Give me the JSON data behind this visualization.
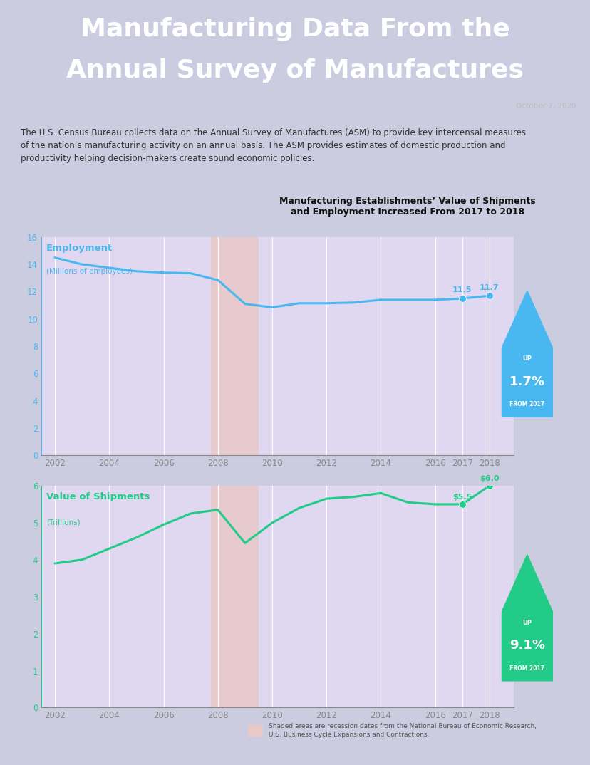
{
  "title_line1": "Manufacturing Data From the",
  "title_line2": "Annual Survey of Manufactures",
  "date_text": "October 2, 2020",
  "header_bg_color": "#595959",
  "body_bg_color": "#cccce0",
  "chart_bg_color": "#e0d8f0",
  "description_line1": "The U.S. Census Bureau collects data on the Annual Survey of Manufactures (ASM) to provide key intercensal measures",
  "description_line2": "of the nation’s manufacturing activity on an annual basis. The ASM provides estimates of domestic production and",
  "description_line3": "productivity helping decision-makers create sound economic policies.",
  "chart_subtitle": "Manufacturing Establishments’ Value of Shipments\nand Employment Increased From 2017 to 2018",
  "recession_shade": [
    2007.75,
    2009.5
  ],
  "employment_years": [
    2002,
    2003,
    2004,
    2005,
    2006,
    2007,
    2008,
    2009,
    2010,
    2011,
    2012,
    2013,
    2014,
    2015,
    2016,
    2017,
    2018
  ],
  "employment_values": [
    14.5,
    14.0,
    13.75,
    13.5,
    13.4,
    13.35,
    12.85,
    11.1,
    10.85,
    11.15,
    11.15,
    11.2,
    11.4,
    11.4,
    11.4,
    11.5,
    11.7
  ],
  "shipments_years": [
    2002,
    2003,
    2004,
    2005,
    2006,
    2007,
    2008,
    2009,
    2010,
    2011,
    2012,
    2013,
    2014,
    2015,
    2016,
    2017,
    2018
  ],
  "shipments_values": [
    3.9,
    4.0,
    4.3,
    4.6,
    4.95,
    5.25,
    5.35,
    4.45,
    5.0,
    5.4,
    5.65,
    5.7,
    5.8,
    5.55,
    5.5,
    5.5,
    6.0
  ],
  "employment_color": "#4ab8f0",
  "shipments_color": "#22cc88",
  "employment_label": "Employment",
  "employment_sublabel": "(Millions of employees)",
  "shipments_label": "Value of Shipments",
  "shipments_sublabel": "(Trillions)",
  "emp_2017_val": "11.5",
  "emp_2018_val": "11.7",
  "ship_2017_label": "$5.5",
  "ship_2018_label": "$6.0",
  "emp_up_pct": "1.7%",
  "ship_up_pct": "9.1%",
  "recession_color": "#e8c8c8",
  "footer_text": "Shaded areas are recession dates from the National Bureau of Economic Research,\nU.S. Business Cycle Expansions and Contractions.",
  "x_ticks": [
    2002,
    2004,
    2006,
    2008,
    2010,
    2012,
    2014,
    2016,
    2017,
    2018
  ],
  "emp_ylim": [
    0,
    16
  ],
  "ship_ylim": [
    0,
    6
  ],
  "emp_yticks": [
    0,
    2,
    4,
    6,
    8,
    10,
    12,
    14,
    16
  ],
  "ship_yticks": [
    0,
    1,
    2,
    3,
    4,
    5,
    6
  ],
  "white_color": "#ffffff",
  "tick_color": "#888888"
}
